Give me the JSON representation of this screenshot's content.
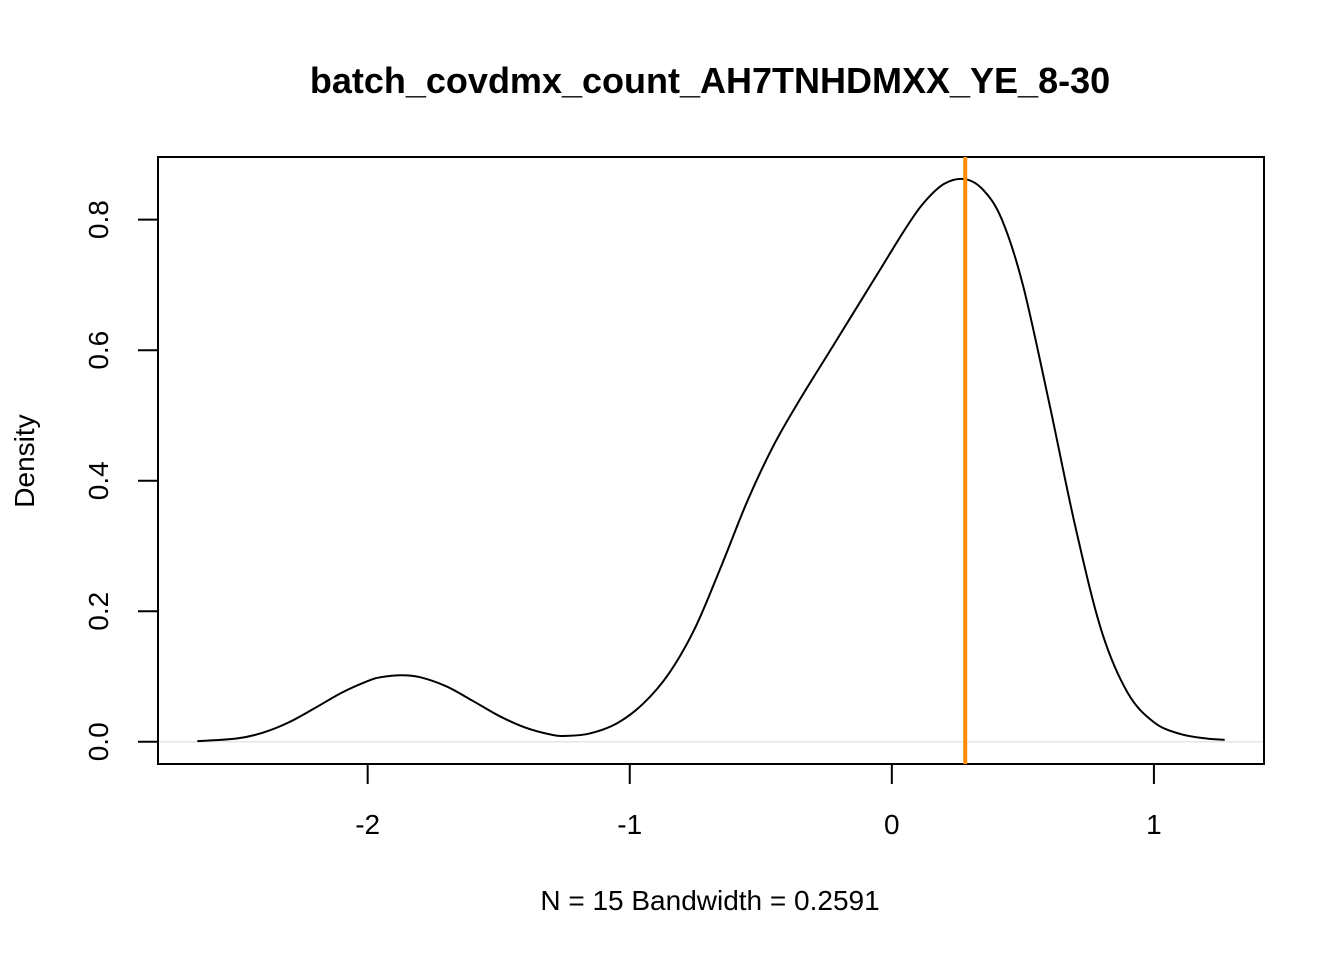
{
  "chart_data": {
    "type": "line",
    "title": "batch_covdmx_count_AH7TNHDMXX_YE_8-30",
    "xlabel": "N = 15   Bandwidth = 0.2591",
    "ylabel": "Density",
    "xlim": [
      -2.8,
      1.42
    ],
    "ylim": [
      -0.034,
      0.896
    ],
    "x_ticks": [
      -2,
      -1,
      0,
      1
    ],
    "x_tick_labels": [
      "-2",
      "-1",
      "0",
      "1"
    ],
    "y_ticks": [
      0.0,
      0.2,
      0.4,
      0.6,
      0.8
    ],
    "y_tick_labels": [
      "0.0",
      "0.2",
      "0.4",
      "0.6",
      "0.8"
    ],
    "grid": false,
    "series": [
      {
        "color": "#000000",
        "x": [
          -2.65,
          -2.5,
          -2.4,
          -2.3,
          -2.2,
          -2.1,
          -2.0,
          -1.95,
          -1.87,
          -1.8,
          -1.7,
          -1.6,
          -1.5,
          -1.4,
          -1.3,
          -1.24,
          -1.15,
          -1.05,
          -0.95,
          -0.85,
          -0.75,
          -0.65,
          -0.55,
          -0.45,
          -0.35,
          -0.25,
          -0.15,
          -0.05,
          0.05,
          0.12,
          0.2,
          0.28,
          0.35,
          0.42,
          0.5,
          0.6,
          0.7,
          0.8,
          0.9,
          1.0,
          1.1,
          1.2,
          1.27
        ],
        "y": [
          0.001,
          0.005,
          0.014,
          0.03,
          0.052,
          0.075,
          0.093,
          0.099,
          0.102,
          0.099,
          0.085,
          0.063,
          0.04,
          0.022,
          0.011,
          0.009,
          0.013,
          0.028,
          0.058,
          0.105,
          0.175,
          0.27,
          0.37,
          0.455,
          0.525,
          0.59,
          0.655,
          0.72,
          0.785,
          0.825,
          0.855,
          0.862,
          0.845,
          0.8,
          0.7,
          0.52,
          0.33,
          0.17,
          0.075,
          0.03,
          0.012,
          0.005,
          0.003
        ]
      }
    ],
    "reference_line": {
      "x": 0.28,
      "color": "#FF8C00"
    },
    "baseline": {
      "y": 0,
      "color": "#E6E6E6"
    }
  }
}
